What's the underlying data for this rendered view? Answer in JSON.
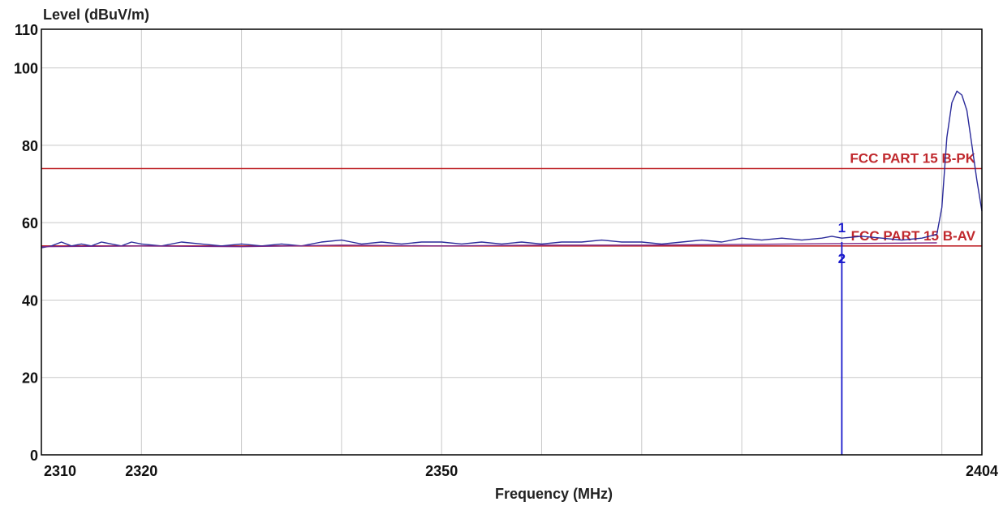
{
  "chart_data": {
    "type": "line",
    "title": "",
    "xlabel": "Frequency (MHz)",
    "ylabel": "Level (dBuV/m)",
    "xlim": [
      2310,
      2404
    ],
    "ylim": [
      0,
      110
    ],
    "x_tick_labels": [
      "2310",
      "2320",
      "2350",
      "2404"
    ],
    "x_tick_values": [
      2310,
      2320,
      2350,
      2404
    ],
    "x_grid_values": [
      2310,
      2320,
      2330,
      2340,
      2350,
      2360,
      2370,
      2380,
      2390,
      2400
    ],
    "y_ticks": [
      0,
      20,
      40,
      60,
      80,
      100,
      110
    ],
    "y_tick_labels": [
      "0",
      "20",
      "40",
      "60",
      "80",
      "100",
      "110"
    ],
    "grid": true,
    "limit_lines": [
      {
        "label": "FCC PART 15 B-PK",
        "value": 74,
        "color": "#c0282d"
      },
      {
        "label": "FCC PART 15 B-AV",
        "value": 54,
        "color": "#c0282d"
      }
    ],
    "markers": [
      {
        "label": "1",
        "x": 2390,
        "y": 57.5
      },
      {
        "label": "2",
        "x": 2390,
        "y": 49.5
      }
    ],
    "marker_line": {
      "x": 2390,
      "from": 0,
      "to": 55,
      "color": "#1a1acc"
    },
    "series": [
      {
        "color": "#2a2a9a",
        "x": [
          2310,
          2311,
          2312,
          2313,
          2314,
          2315,
          2316,
          2317,
          2318,
          2319,
          2320,
          2322,
          2324,
          2326,
          2328,
          2330,
          2332,
          2334,
          2336,
          2338,
          2340,
          2341,
          2342,
          2344,
          2346,
          2348,
          2350,
          2352,
          2354,
          2356,
          2358,
          2360,
          2362,
          2364,
          2366,
          2368,
          2370,
          2372,
          2374,
          2376,
          2378,
          2380,
          2382,
          2384,
          2386,
          2388,
          2389,
          2390,
          2392,
          2394,
          2396,
          2398,
          2399.5,
          2400,
          2400.5,
          2401,
          2401.5,
          2402,
          2402.5,
          2403,
          2403.5,
          2404
        ],
        "y": [
          53.5,
          54.0,
          55.0,
          54.0,
          54.5,
          54.0,
          55.0,
          54.5,
          54.0,
          55.0,
          54.5,
          54.0,
          55.0,
          54.5,
          54.0,
          54.5,
          54.0,
          54.5,
          54.0,
          55.0,
          55.5,
          55.0,
          54.5,
          55.0,
          54.5,
          55.0,
          55.0,
          54.5,
          55.0,
          54.5,
          55.0,
          54.5,
          55.0,
          55.0,
          55.5,
          55.0,
          55.0,
          54.5,
          55.0,
          55.5,
          55.0,
          56.0,
          55.5,
          56.0,
          55.5,
          56.0,
          56.5,
          56.0,
          56.5,
          56.0,
          55.5,
          56.0,
          57.0,
          64.0,
          82.0,
          91.0,
          94.0,
          93.0,
          89.0,
          80.0,
          71.0,
          63.0
        ]
      },
      {
        "color": "#7a2a8a",
        "x": [
          2310,
          2320,
          2330,
          2340,
          2350,
          2360,
          2370,
          2380,
          2390,
          2399.5
        ],
        "y": [
          53.8,
          54.0,
          53.8,
          54.2,
          54.0,
          54.2,
          54.2,
          54.4,
          54.6,
          54.8
        ]
      }
    ]
  }
}
